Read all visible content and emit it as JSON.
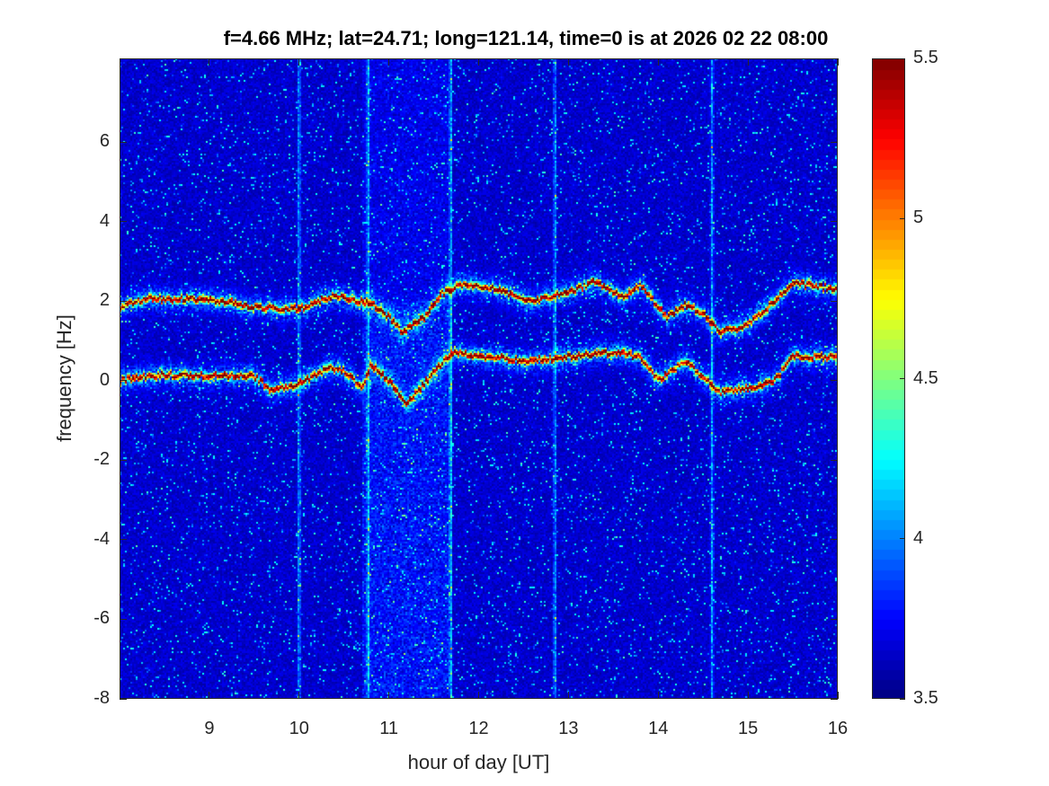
{
  "chart_data": {
    "type": "heatmap",
    "title": "f=4.66 MHz;  lat=24.71; long=121.14, time=0 is at 2026 02 22 08:00",
    "xlabel": "hour of day [UT]",
    "ylabel": "frequency [Hz]",
    "xlim": [
      8,
      16
    ],
    "ylim": [
      -8,
      8.1
    ],
    "xticks": [
      9,
      10,
      11,
      12,
      13,
      14,
      15,
      16
    ],
    "yticks": [
      -8,
      -6,
      -4,
      -2,
      0,
      2,
      4,
      6
    ],
    "colormap": "jet",
    "clim": [
      3.5,
      5.5
    ],
    "colorbar_ticks": [
      3.5,
      4,
      4.5,
      5,
      5.5
    ],
    "background_level": 3.65,
    "traces": [
      {
        "name": "upper Doppler trace",
        "peak": 5.5,
        "points": [
          [
            8,
            1.85
          ],
          [
            8.3,
            2.05
          ],
          [
            8.7,
            2.05
          ],
          [
            9.2,
            2.0
          ],
          [
            9.5,
            1.85
          ],
          [
            10,
            1.8
          ],
          [
            10.4,
            2.15
          ],
          [
            10.6,
            2.0
          ],
          [
            10.8,
            1.95
          ],
          [
            11.0,
            1.6
          ],
          [
            11.15,
            1.2
          ],
          [
            11.4,
            1.6
          ],
          [
            11.6,
            2.2
          ],
          [
            11.8,
            2.4
          ],
          [
            12.2,
            2.3
          ],
          [
            12.6,
            2.0
          ],
          [
            13.0,
            2.2
          ],
          [
            13.3,
            2.5
          ],
          [
            13.6,
            2.1
          ],
          [
            13.8,
            2.4
          ],
          [
            14.1,
            1.6
          ],
          [
            14.3,
            1.9
          ],
          [
            14.5,
            1.7
          ],
          [
            14.7,
            1.2
          ],
          [
            15.0,
            1.4
          ],
          [
            15.3,
            2.0
          ],
          [
            15.5,
            2.45
          ],
          [
            16,
            2.3
          ]
        ]
      },
      {
        "name": "lower Doppler trace",
        "peak": 5.5,
        "points": [
          [
            8,
            0.0
          ],
          [
            8.5,
            0.15
          ],
          [
            9.5,
            0.1
          ],
          [
            9.7,
            -0.25
          ],
          [
            10,
            -0.1
          ],
          [
            10.3,
            0.3
          ],
          [
            10.5,
            0.25
          ],
          [
            10.7,
            -0.2
          ],
          [
            10.8,
            0.4
          ],
          [
            11.0,
            0.0
          ],
          [
            11.2,
            -0.6
          ],
          [
            11.5,
            0.2
          ],
          [
            11.7,
            0.7
          ],
          [
            12.5,
            0.5
          ],
          [
            13.0,
            0.6
          ],
          [
            13.5,
            0.7
          ],
          [
            13.8,
            0.6
          ],
          [
            14.0,
            0.0
          ],
          [
            14.3,
            0.5
          ],
          [
            14.6,
            -0.1
          ],
          [
            14.7,
            -0.3
          ],
          [
            15.0,
            -0.2
          ],
          [
            15.3,
            0.0
          ],
          [
            15.5,
            0.6
          ],
          [
            16,
            0.6
          ]
        ]
      }
    ],
    "broadband_interference_hours": [
      10.0,
      10.77,
      11.69,
      12.85,
      14.6
    ]
  }
}
